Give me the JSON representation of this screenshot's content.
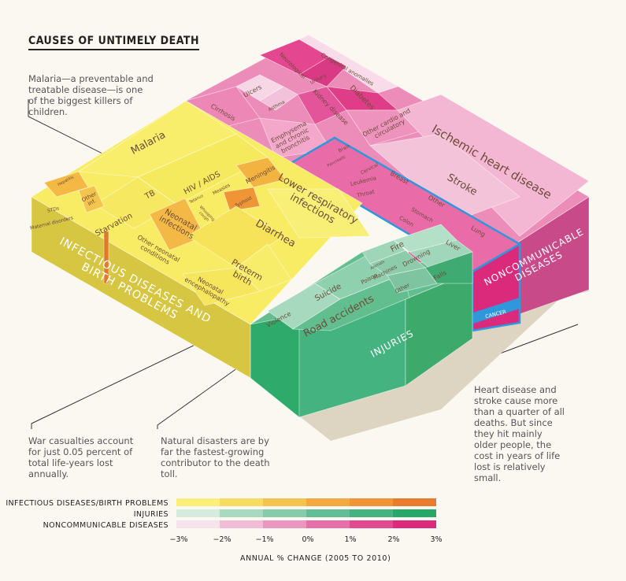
{
  "title": "CAUSES OF UNTIMELY DEATH",
  "notes": {
    "malaria": "Malaria—a preventable and treatable disease—is one of the biggest killers of children.",
    "heart": "Heart disease and stroke cause more than a quarter of all deaths. But since they hit mainly older people, the cost in years of life lost is relatively small.",
    "war": "War casualties account for just 0.05 percent of total life-years lost annually.",
    "disasters": "Natural disasters are by far the fastest-growing contributor to the death toll."
  },
  "chart_data": {
    "type": "treemap-3d",
    "groups": [
      {
        "name": "INFECTIOUS DISEASES AND BIRTH PROBLEMS",
        "items": [
          "Malaria",
          "HIV/AIDS",
          "TB",
          "Hepatitis",
          "Other inf.",
          "STDs",
          "Maternal disorders",
          "Starvation",
          "Tetanus",
          "Measles",
          "Meningitis",
          "Typhoid",
          "Whooping cough",
          "Lower respiratory infections",
          "Neonatal infections",
          "Other neonatal conditions",
          "Diarrhea",
          "Preterm birth",
          "Neonatal encephalopathy"
        ]
      },
      {
        "name": "INJURIES",
        "items": [
          "Fire",
          "Animals",
          "Drowning",
          "Machines",
          "Poison",
          "Falls",
          "Suicide",
          "Other",
          "Violence",
          "Road accidents"
        ]
      },
      {
        "name": "NONCOMMUNICABLE DISEASES",
        "items": [
          "Congenital anomalies",
          "Neurological",
          "Urinary",
          "Ulcers",
          "Asthma",
          "Cirrhosis",
          "Kidney disease",
          "Diabetes",
          "Other cardio and circulatory",
          "Emphysema and chronic bronchitis",
          "Ischemic heart disease",
          "Stroke",
          "Brain",
          "Pancreatic",
          "Cervical",
          "Breast",
          "Leukemia",
          "Other",
          "Throat",
          "Stomach",
          "Colon",
          "Lung",
          "Liver"
        ]
      }
    ],
    "cancer_label": "CANCER",
    "legend": {
      "rows": [
        "INFECTIOUS DISEASES/BIRTH PROBLEMS",
        "INJURIES",
        "NONCOMMUNICABLE DISEASES"
      ],
      "ticks": [
        "−3%",
        "−2%",
        "−1%",
        "0%",
        "1%",
        "2%",
        "3%"
      ],
      "axis_title": "ANNUAL % CHANGE (2005 TO 2010)",
      "scales": [
        [
          "#f9ef7a",
          "#f6dc60",
          "#f4c34d",
          "#f2aa40",
          "#ef9536",
          "#e87c2d"
        ],
        [
          "#d4ebdd",
          "#a9d9bf",
          "#86ccaa",
          "#62be95",
          "#44b380",
          "#27a76a"
        ],
        [
          "#f6e3ec",
          "#f0bdd5",
          "#ea96be",
          "#e570a7",
          "#e04a91",
          "#db2a7b"
        ]
      ]
    }
  },
  "colors": {
    "infectious_top": "#f7ec63",
    "infectious_side": "#d6c641",
    "injury_top": "#63be8f",
    "injury_side": "#3daa6c",
    "ncd_top": "#ec8cb8",
    "ncd_side": "#c94a88",
    "cancer_outline": "#2f97dc",
    "shadow": "#ddd5c2"
  }
}
